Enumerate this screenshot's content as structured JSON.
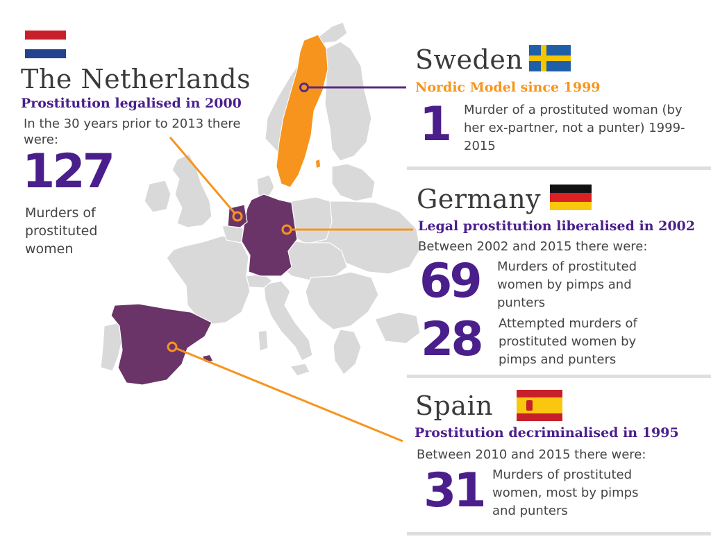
{
  "colors": {
    "purple_text": "#4a1f8c",
    "orange": "#f7941d",
    "map_purple": "#6b3468",
    "map_grey": "#d9d9d9",
    "line_purple": "#5a2b82",
    "divider": "#dedede"
  },
  "netherlands": {
    "country": "The Netherlands",
    "policy": "Prostitution legalised in 2000",
    "intro": "In the 30 years prior to 2013 there were:",
    "stat": {
      "number": "127",
      "desc": "Murders of prostituted women"
    }
  },
  "sweden": {
    "country": "Sweden",
    "policy": "Nordic Model since 1999",
    "stat": {
      "number": "1",
      "desc": "Murder of a prostituted woman (by her ex-partner, not a punter) 1999-2015"
    }
  },
  "germany": {
    "country": "Germany",
    "policy": "Legal prostitution liberalised in 2002",
    "intro": "Between 2002 and 2015 there were:",
    "stats": [
      {
        "number": "69",
        "desc": "Murders of  prostituted women by pimps and punters"
      },
      {
        "number": "28",
        "desc": "Attempted murders of prostituted women by pimps and punters"
      }
    ]
  },
  "spain": {
    "country": "Spain",
    "policy": "Prostitution decriminalised in 1995",
    "intro": "Between 2010 and 2015 there were:",
    "stat": {
      "number": "31",
      "desc": "Murders of  prostituted women, most by pimps and punters"
    }
  }
}
